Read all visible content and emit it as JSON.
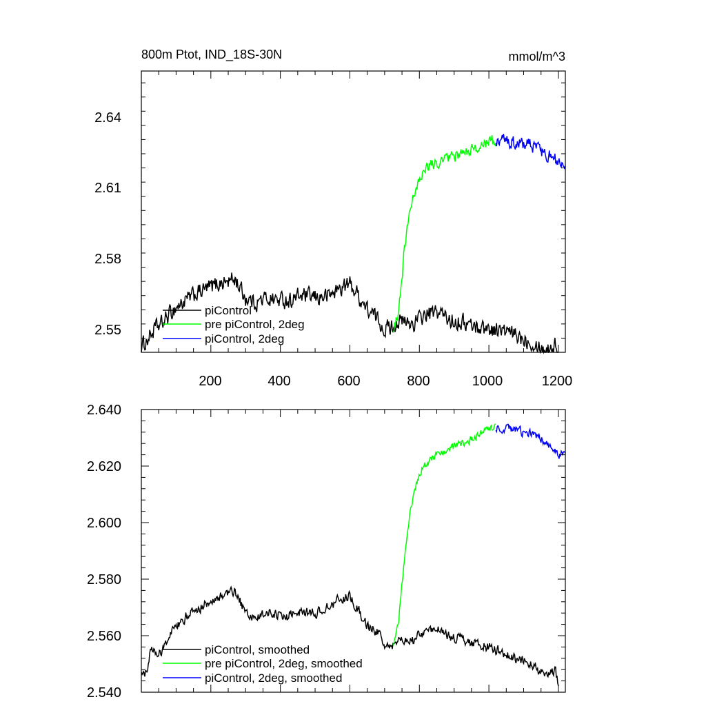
{
  "chart_data": [
    {
      "type": "line",
      "title": "800m Ptot, IND_18S-30N",
      "units": "mmol/m^3",
      "xlim": [
        0,
        1220
      ],
      "ylim": [
        2.545,
        2.664
      ],
      "x_ticks": [
        200,
        400,
        600,
        800,
        1000,
        1200
      ],
      "y_ticks": [
        2.55,
        2.58,
        2.61,
        2.64
      ],
      "y_tick_labels": [
        "2.55",
        "2.58",
        "2.61",
        "2.64"
      ],
      "legend": {
        "placement": "bottom-left"
      },
      "series": [
        {
          "name": "piControl",
          "color": "#000000",
          "noise": 0.0032,
          "points": [
            [
              0,
              2.547
            ],
            [
              20,
              2.551
            ],
            [
              40,
              2.555
            ],
            [
              60,
              2.557
            ],
            [
              80,
              2.561
            ],
            [
              100,
              2.564
            ],
            [
              130,
              2.567
            ],
            [
              160,
              2.57
            ],
            [
              190,
              2.572
            ],
            [
              220,
              2.574
            ],
            [
              250,
              2.575
            ],
            [
              270,
              2.576
            ],
            [
              300,
              2.568
            ],
            [
              330,
              2.566
            ],
            [
              360,
              2.568
            ],
            [
              400,
              2.567
            ],
            [
              430,
              2.567
            ],
            [
              460,
              2.569
            ],
            [
              500,
              2.568
            ],
            [
              540,
              2.569
            ],
            [
              570,
              2.572
            ],
            [
              600,
              2.574
            ],
            [
              620,
              2.57
            ],
            [
              650,
              2.563
            ],
            [
              680,
              2.559
            ],
            [
              700,
              2.555
            ],
            [
              720,
              2.556
            ],
            [
              740,
              2.558
            ],
            [
              780,
              2.557
            ],
            [
              820,
              2.561
            ],
            [
              860,
              2.562
            ],
            [
              880,
              2.559
            ],
            [
              920,
              2.558
            ],
            [
              960,
              2.556
            ],
            [
              1000,
              2.555
            ],
            [
              1040,
              2.554
            ],
            [
              1080,
              2.552
            ],
            [
              1120,
              2.55
            ],
            [
              1160,
              2.546
            ],
            [
              1190,
              2.548
            ],
            [
              1200,
              2.545
            ]
          ]
        },
        {
          "name": "pre piControl, 2deg",
          "color": "#00ff00",
          "noise": 0.0022,
          "points": [
            [
              725,
              2.554
            ],
            [
              740,
              2.562
            ],
            [
              755,
              2.585
            ],
            [
              770,
              2.602
            ],
            [
              790,
              2.615
            ],
            [
              810,
              2.622
            ],
            [
              840,
              2.625
            ],
            [
              880,
              2.627
            ],
            [
              920,
              2.629
            ],
            [
              960,
              2.631
            ],
            [
              1000,
              2.634
            ],
            [
              1020,
              2.635
            ]
          ]
        },
        {
          "name": "piControl, 2deg",
          "color": "#0000ff",
          "noise": 0.0026,
          "points": [
            [
              1020,
              2.635
            ],
            [
              1060,
              2.634
            ],
            [
              1100,
              2.633
            ],
            [
              1140,
              2.632
            ],
            [
              1170,
              2.628
            ],
            [
              1200,
              2.626
            ],
            [
              1220,
              2.625
            ]
          ]
        }
      ]
    },
    {
      "type": "line",
      "title": "",
      "xlim": [
        0,
        1220
      ],
      "ylim": [
        2.54,
        2.64
      ],
      "x_ticks": [
        200,
        400,
        600,
        800,
        1000,
        1200
      ],
      "y_ticks": [
        2.54,
        2.56,
        2.58,
        2.6,
        2.62,
        2.64
      ],
      "y_tick_labels": [
        "2.540",
        "2.560",
        "2.580",
        "2.600",
        "2.620",
        "2.640"
      ],
      "legend": {
        "placement": "bottom-left"
      },
      "series": [
        {
          "name": "piControl, smoothed",
          "color": "#000000",
          "noise": 0.0016,
          "points": [
            [
              0,
              2.545
            ],
            [
              15,
              2.548
            ],
            [
              30,
              2.556
            ],
            [
              50,
              2.553
            ],
            [
              70,
              2.558
            ],
            [
              100,
              2.563
            ],
            [
              130,
              2.567
            ],
            [
              160,
              2.569
            ],
            [
              190,
              2.572
            ],
            [
              220,
              2.573
            ],
            [
              250,
              2.575
            ],
            [
              270,
              2.576
            ],
            [
              300,
              2.568
            ],
            [
              330,
              2.566
            ],
            [
              360,
              2.568
            ],
            [
              400,
              2.567
            ],
            [
              430,
              2.567
            ],
            [
              460,
              2.568
            ],
            [
              500,
              2.568
            ],
            [
              540,
              2.57
            ],
            [
              570,
              2.573
            ],
            [
              600,
              2.574
            ],
            [
              620,
              2.57
            ],
            [
              650,
              2.564
            ],
            [
              680,
              2.561
            ],
            [
              700,
              2.557
            ],
            [
              720,
              2.556
            ],
            [
              740,
              2.558
            ],
            [
              780,
              2.558
            ],
            [
              820,
              2.562
            ],
            [
              860,
              2.562
            ],
            [
              880,
              2.56
            ],
            [
              920,
              2.559
            ],
            [
              960,
              2.557
            ],
            [
              1000,
              2.556
            ],
            [
              1040,
              2.554
            ],
            [
              1080,
              2.552
            ],
            [
              1120,
              2.55
            ],
            [
              1160,
              2.546
            ],
            [
              1190,
              2.548
            ],
            [
              1200,
              2.543
            ]
          ]
        },
        {
          "name": "pre piControl, 2deg, smoothed",
          "color": "#00ff00",
          "noise": 0.0012,
          "points": [
            [
              725,
              2.557
            ],
            [
              740,
              2.565
            ],
            [
              755,
              2.585
            ],
            [
              770,
              2.601
            ],
            [
              790,
              2.613
            ],
            [
              810,
              2.62
            ],
            [
              840,
              2.623
            ],
            [
              880,
              2.626
            ],
            [
              920,
              2.628
            ],
            [
              960,
              2.63
            ],
            [
              1000,
              2.633
            ],
            [
              1020,
              2.634
            ]
          ]
        },
        {
          "name": "piControl, 2deg, smoothed",
          "color": "#0000ff",
          "noise": 0.0014,
          "points": [
            [
              1020,
              2.634
            ],
            [
              1060,
              2.633
            ],
            [
              1100,
              2.632
            ],
            [
              1140,
              2.631
            ],
            [
              1170,
              2.627
            ],
            [
              1200,
              2.624
            ],
            [
              1220,
              2.625
            ]
          ]
        }
      ]
    }
  ]
}
